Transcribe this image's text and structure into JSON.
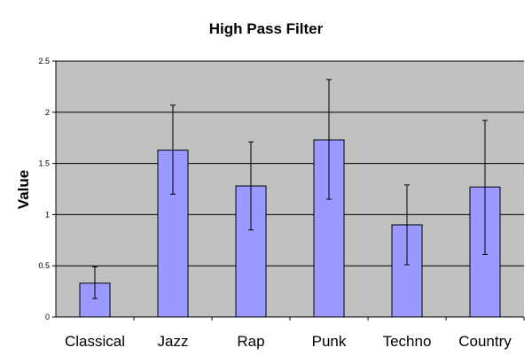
{
  "chart_data": {
    "type": "bar",
    "title": "High Pass Filter",
    "xlabel": "",
    "ylabel": "Value",
    "categories": [
      "Classical",
      "Jazz",
      "Rap",
      "Punk",
      "Techno",
      "Country"
    ],
    "values": [
      0.33,
      1.63,
      1.28,
      1.73,
      0.9,
      1.27
    ],
    "error_low": [
      0.18,
      1.2,
      0.85,
      1.15,
      0.51,
      0.61
    ],
    "error_high": [
      0.49,
      2.07,
      1.71,
      2.32,
      1.29,
      1.92
    ],
    "ylim": [
      0,
      2.5
    ],
    "yticks": [
      "0",
      "0.5",
      "1",
      "1.5",
      "2",
      "2.5"
    ],
    "grid": true,
    "legend": "none",
    "colors": {
      "bar_fill": "#9999ff",
      "bar_stroke": "#000000",
      "plot_background": "#c0c0c0",
      "grid": "#000000",
      "error_bar": "#000000"
    }
  }
}
